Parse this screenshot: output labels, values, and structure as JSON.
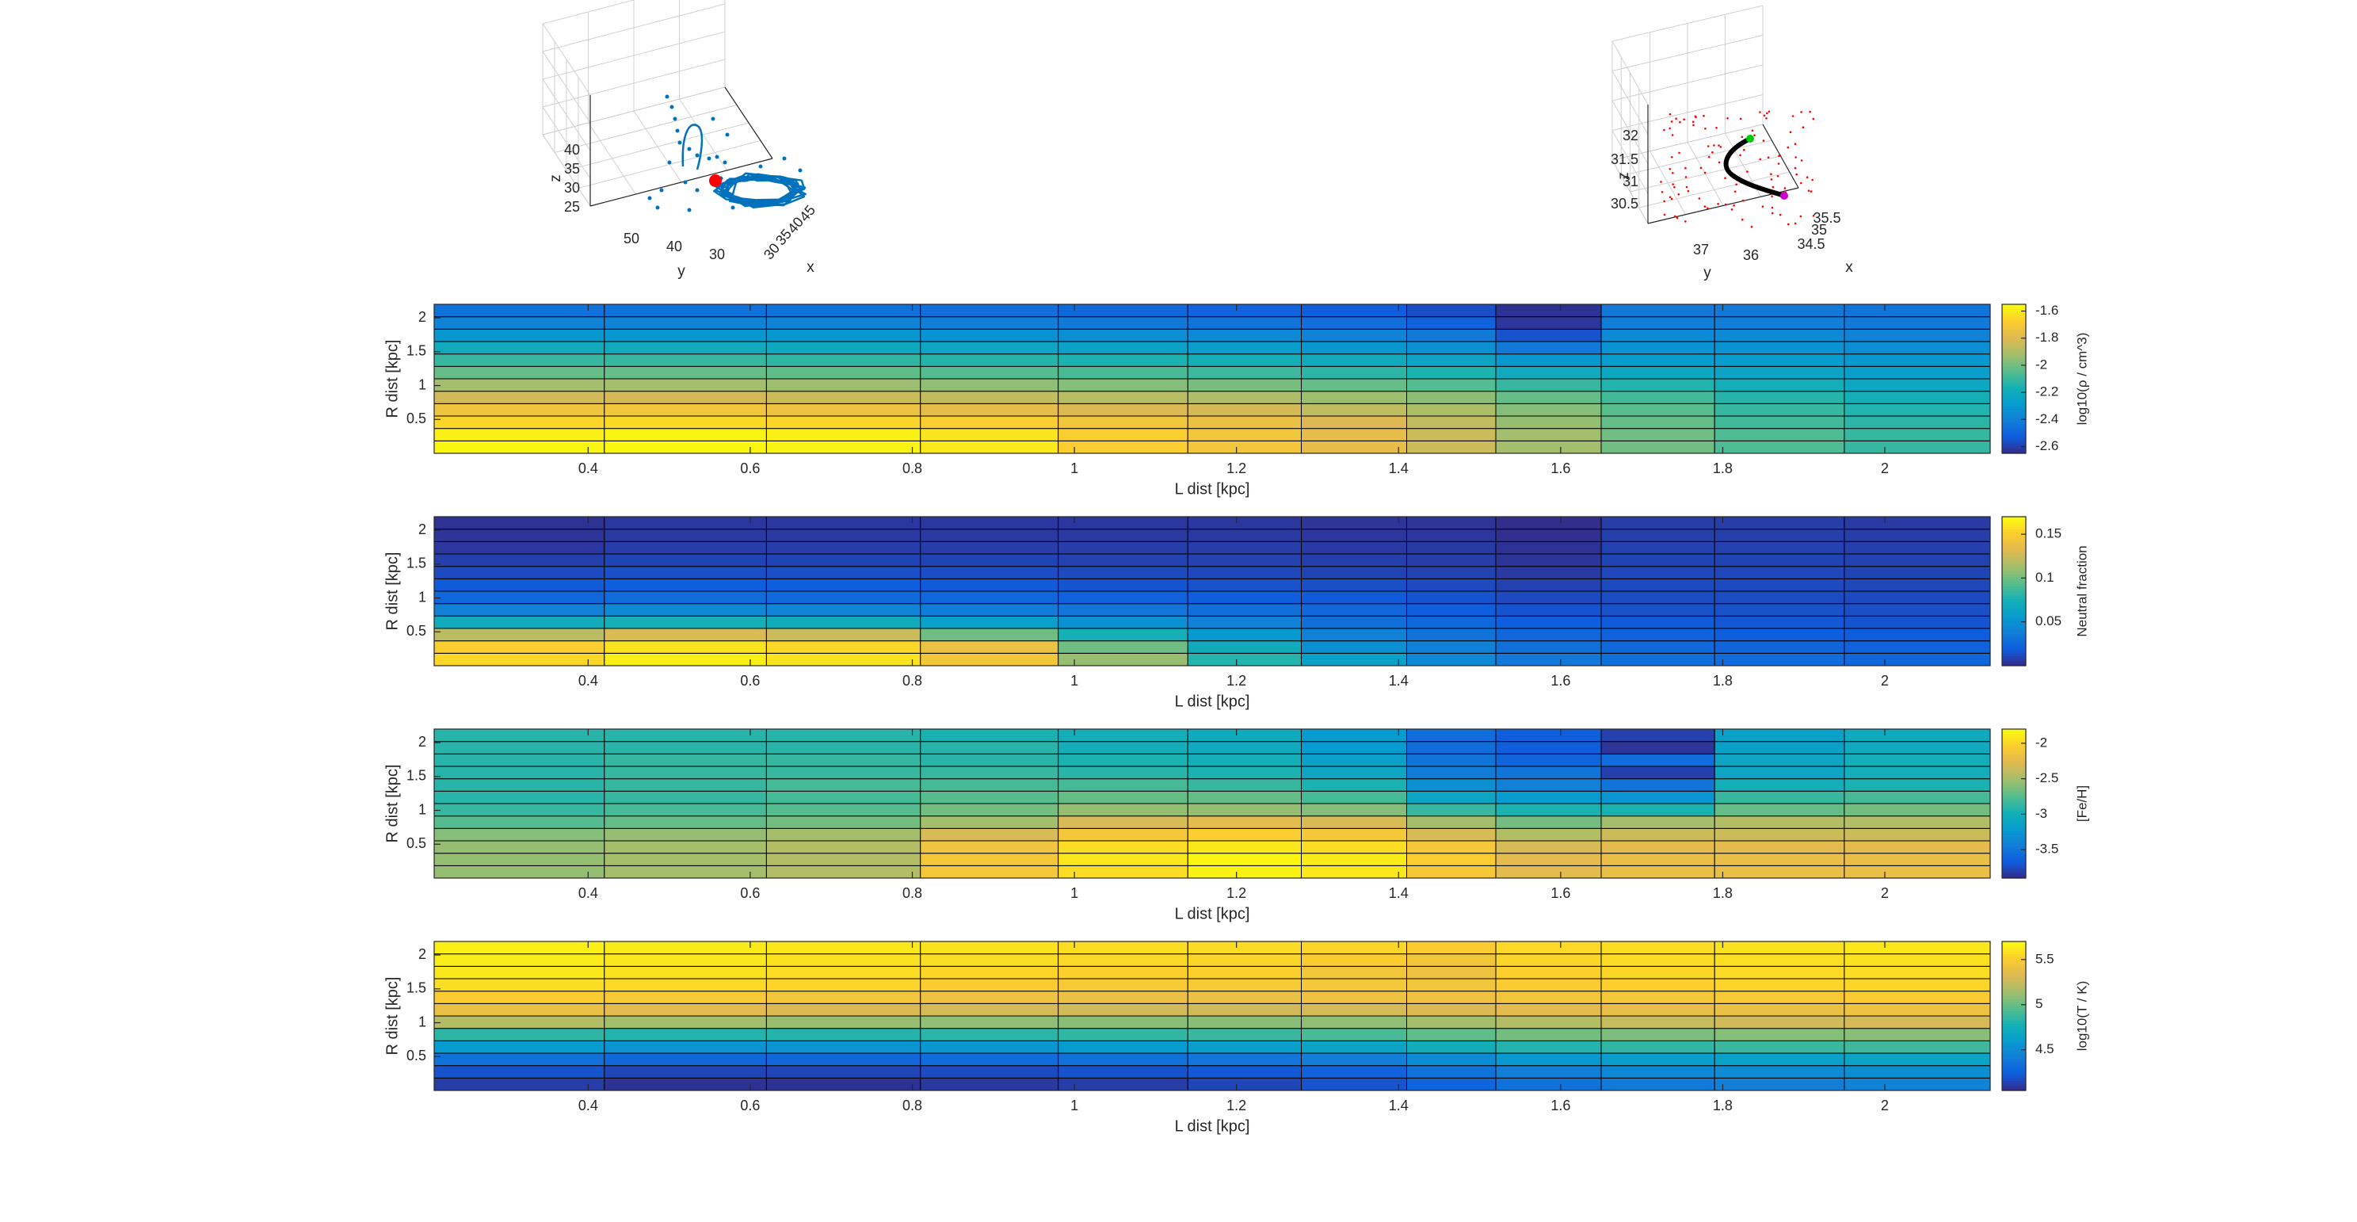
{
  "figure": {
    "background": "#ffffff"
  },
  "chart_data": [
    {
      "type": "scatter3d",
      "id": "left3d",
      "xlabel": "x",
      "ylabel": "y",
      "zlabel": "z",
      "x_ticks": [
        "30",
        "35",
        "40",
        "45"
      ],
      "y_ticks": [
        "50",
        "40",
        "30"
      ],
      "z_ticks": [
        "25",
        "30",
        "35",
        "40"
      ],
      "marker_color": "#0072BD",
      "highlight_color": "#ff0000"
    },
    {
      "type": "scatter3d",
      "id": "right3d",
      "xlabel": "x",
      "ylabel": "y",
      "zlabel": "z",
      "x_ticks": [
        "34.5",
        "35",
        "35.5"
      ],
      "y_ticks": [
        "37",
        "36"
      ],
      "z_ticks": [
        "30.5",
        "31",
        "31.5",
        "32"
      ],
      "line_color": "#000000",
      "start_color": "#00cc00",
      "end_color": "#cc00cc",
      "cloud_color": "#ff0000"
    },
    {
      "type": "heatmap",
      "id": "density",
      "xlabel": "L dist [kpc]",
      "ylabel": "R dist [kpc]",
      "x_ticks": [
        "0.4",
        "0.6",
        "0.8",
        "1",
        "1.2",
        "1.4",
        "1.6",
        "1.8",
        "2"
      ],
      "y_ticks": [
        "0.5",
        "1",
        "1.5",
        "2"
      ],
      "colorbar_label": "log10(ρ / cm^3)",
      "colorbar_ticks": [
        "-1.6",
        "-1.8",
        "-2",
        "-2.2",
        "-2.4",
        "-2.6"
      ],
      "clim": [
        -2.65,
        -1.55
      ],
      "colormap": "parula",
      "values_note": "rows listed bottom (R≈0.1) to top (R≈2.1), columns left to right",
      "values": [
        [
          -1.56,
          -1.56,
          -1.57,
          -1.6,
          -1.68,
          -1.72,
          -1.77,
          -1.84,
          -1.92,
          -2.0,
          -2.06,
          -2.1
        ],
        [
          -1.58,
          -1.57,
          -1.58,
          -1.61,
          -1.68,
          -1.72,
          -1.77,
          -1.84,
          -1.92,
          -2.0,
          -2.06,
          -2.1
        ],
        [
          -1.65,
          -1.64,
          -1.65,
          -1.68,
          -1.72,
          -1.75,
          -1.8,
          -1.86,
          -1.94,
          -2.02,
          -2.08,
          -2.12
        ],
        [
          -1.73,
          -1.72,
          -1.74,
          -1.77,
          -1.8,
          -1.82,
          -1.86,
          -1.9,
          -1.97,
          -2.04,
          -2.1,
          -2.14
        ],
        [
          -1.83,
          -1.82,
          -1.84,
          -1.86,
          -1.88,
          -1.9,
          -1.93,
          -1.96,
          -2.02,
          -2.08,
          -2.13,
          -2.17
        ],
        [
          -1.92,
          -1.92,
          -1.93,
          -1.95,
          -1.97,
          -1.99,
          -2.02,
          -2.05,
          -2.1,
          -2.14,
          -2.18,
          -2.22
        ],
        [
          -2.02,
          -2.02,
          -2.03,
          -2.05,
          -2.07,
          -2.09,
          -2.12,
          -2.15,
          -2.2,
          -2.22,
          -2.24,
          -2.27
        ],
        [
          -2.1,
          -2.1,
          -2.11,
          -2.13,
          -2.15,
          -2.17,
          -2.2,
          -2.24,
          -2.3,
          -2.28,
          -2.28,
          -2.3
        ],
        [
          -2.2,
          -2.2,
          -2.21,
          -2.23,
          -2.25,
          -2.27,
          -2.3,
          -2.33,
          -2.42,
          -2.32,
          -2.32,
          -2.34
        ],
        [
          -2.3,
          -2.3,
          -2.3,
          -2.32,
          -2.34,
          -2.36,
          -2.38,
          -2.42,
          -2.55,
          -2.36,
          -2.36,
          -2.38
        ],
        [
          -2.38,
          -2.38,
          -2.38,
          -2.4,
          -2.42,
          -2.44,
          -2.46,
          -2.5,
          -2.62,
          -2.4,
          -2.4,
          -2.42
        ],
        [
          -2.45,
          -2.45,
          -2.45,
          -2.46,
          -2.48,
          -2.5,
          -2.52,
          -2.56,
          -2.63,
          -2.42,
          -2.42,
          -2.44
        ]
      ]
    },
    {
      "type": "heatmap",
      "id": "neutral",
      "xlabel": "L dist [kpc]",
      "ylabel": "R dist [kpc]",
      "x_ticks": [
        "0.4",
        "0.6",
        "0.8",
        "1",
        "1.2",
        "1.4",
        "1.6",
        "1.8",
        "2"
      ],
      "y_ticks": [
        "0.5",
        "1",
        "1.5",
        "2"
      ],
      "colorbar_label": "Neutral fraction",
      "colorbar_ticks": [
        "0.15",
        "0.1",
        "0.05"
      ],
      "clim": [
        0.0,
        0.17
      ],
      "colormap": "parula",
      "values_note": "rows listed bottom to top, columns left to right",
      "values": [
        [
          0.155,
          0.165,
          0.16,
          0.145,
          0.11,
          0.08,
          0.06,
          0.045,
          0.035,
          0.03,
          0.028,
          0.025
        ],
        [
          0.15,
          0.16,
          0.155,
          0.14,
          0.1,
          0.07,
          0.05,
          0.04,
          0.03,
          0.026,
          0.024,
          0.022
        ],
        [
          0.12,
          0.13,
          0.125,
          0.1,
          0.075,
          0.055,
          0.04,
          0.032,
          0.025,
          0.022,
          0.02,
          0.019
        ],
        [
          0.07,
          0.075,
          0.07,
          0.06,
          0.05,
          0.04,
          0.03,
          0.025,
          0.02,
          0.018,
          0.017,
          0.016
        ],
        [
          0.04,
          0.045,
          0.042,
          0.038,
          0.033,
          0.03,
          0.025,
          0.02,
          0.016,
          0.015,
          0.015,
          0.014
        ],
        [
          0.025,
          0.028,
          0.027,
          0.025,
          0.022,
          0.02,
          0.018,
          0.016,
          0.012,
          0.013,
          0.013,
          0.012
        ],
        [
          0.018,
          0.02,
          0.02,
          0.018,
          0.016,
          0.015,
          0.014,
          0.012,
          0.009,
          0.012,
          0.012,
          0.011
        ],
        [
          0.012,
          0.014,
          0.014,
          0.013,
          0.012,
          0.011,
          0.01,
          0.009,
          0.006,
          0.011,
          0.011,
          0.01
        ],
        [
          0.008,
          0.01,
          0.01,
          0.01,
          0.009,
          0.009,
          0.008,
          0.007,
          0.004,
          0.01,
          0.01,
          0.009
        ],
        [
          0.005,
          0.007,
          0.007,
          0.007,
          0.007,
          0.007,
          0.006,
          0.006,
          0.003,
          0.009,
          0.009,
          0.008
        ],
        [
          0.004,
          0.006,
          0.006,
          0.006,
          0.006,
          0.006,
          0.005,
          0.005,
          0.002,
          0.008,
          0.008,
          0.007
        ],
        [
          0.003,
          0.005,
          0.005,
          0.005,
          0.005,
          0.005,
          0.004,
          0.004,
          0.001,
          0.007,
          0.007,
          0.006
        ]
      ]
    },
    {
      "type": "heatmap",
      "id": "metallicity",
      "xlabel": "L dist [kpc]",
      "ylabel": "R dist [kpc]",
      "x_ticks": [
        "0.4",
        "0.6",
        "0.8",
        "1",
        "1.2",
        "1.4",
        "1.6",
        "1.8",
        "2"
      ],
      "y_ticks": [
        "0.5",
        "1",
        "1.5",
        "2"
      ],
      "colorbar_label": "[Fe/H]",
      "colorbar_ticks": [
        "-2",
        "-2.5",
        "-3",
        "-3.5"
      ],
      "clim": [
        -3.9,
        -1.8
      ],
      "colormap": "parula",
      "values_note": "rows listed bottom to top, columns left to right",
      "values": [
        [
          -2.55,
          -2.5,
          -2.45,
          -2.1,
          -1.95,
          -1.85,
          -1.9,
          -2.1,
          -2.25,
          -2.2,
          -2.2,
          -2.2
        ],
        [
          -2.55,
          -2.5,
          -2.45,
          -2.1,
          -1.9,
          -1.82,
          -1.88,
          -2.05,
          -2.25,
          -2.2,
          -2.2,
          -2.2
        ],
        [
          -2.55,
          -2.5,
          -2.45,
          -2.15,
          -1.95,
          -1.9,
          -1.95,
          -2.1,
          -2.3,
          -2.25,
          -2.25,
          -2.25
        ],
        [
          -2.6,
          -2.55,
          -2.5,
          -2.3,
          -2.1,
          -2.05,
          -2.1,
          -2.3,
          -2.45,
          -2.35,
          -2.35,
          -2.35
        ],
        [
          -2.75,
          -2.7,
          -2.65,
          -2.5,
          -2.3,
          -2.25,
          -2.3,
          -2.5,
          -2.65,
          -2.5,
          -2.45,
          -2.45
        ],
        [
          -2.85,
          -2.8,
          -2.75,
          -2.65,
          -2.55,
          -2.55,
          -2.6,
          -2.85,
          -2.95,
          -2.95,
          -2.7,
          -2.65
        ],
        [
          -2.9,
          -2.85,
          -2.8,
          -2.75,
          -2.7,
          -2.7,
          -2.8,
          -3.1,
          -3.2,
          -3.25,
          -2.85,
          -2.8
        ],
        [
          -2.9,
          -2.85,
          -2.8,
          -2.8,
          -2.8,
          -2.85,
          -2.95,
          -3.3,
          -3.4,
          -3.5,
          -3.0,
          -2.95
        ],
        [
          -2.9,
          -2.85,
          -2.85,
          -2.85,
          -2.9,
          -2.95,
          -3.1,
          -3.45,
          -3.5,
          -3.8,
          -3.1,
          -3.0
        ],
        [
          -2.9,
          -2.85,
          -2.85,
          -2.9,
          -2.95,
          -3.0,
          -3.15,
          -3.5,
          -3.6,
          -3.55,
          -3.1,
          -3.0
        ],
        [
          -2.9,
          -2.9,
          -2.9,
          -2.9,
          -3.0,
          -3.05,
          -3.2,
          -3.55,
          -3.65,
          -3.85,
          -3.15,
          -3.05
        ],
        [
          -2.9,
          -2.9,
          -2.9,
          -2.95,
          -3.0,
          -3.05,
          -3.2,
          -3.55,
          -3.65,
          -3.8,
          -3.15,
          -3.05
        ]
      ]
    },
    {
      "type": "heatmap",
      "id": "temperature",
      "xlabel": "L dist [kpc]",
      "ylabel": "R dist [kpc]",
      "x_ticks": [
        "0.4",
        "0.6",
        "0.8",
        "1",
        "1.2",
        "1.4",
        "1.6",
        "1.8",
        "2"
      ],
      "y_ticks": [
        "0.5",
        "1",
        "1.5",
        "2"
      ],
      "colorbar_label": "log10(T / K)",
      "colorbar_ticks": [
        "5.5",
        "5",
        "4.5"
      ],
      "clim": [
        4.05,
        5.7
      ],
      "colormap": "parula",
      "values_note": "rows listed bottom to top, columns left to right",
      "values": [
        [
          4.12,
          4.08,
          4.08,
          4.1,
          4.12,
          4.15,
          4.2,
          4.28,
          4.35,
          4.4,
          4.42,
          4.45
        ],
        [
          4.2,
          4.15,
          4.15,
          4.17,
          4.2,
          4.22,
          4.27,
          4.35,
          4.42,
          4.48,
          4.5,
          4.52
        ],
        [
          4.35,
          4.3,
          4.3,
          4.32,
          4.35,
          4.37,
          4.42,
          4.5,
          4.58,
          4.62,
          4.64,
          4.66
        ],
        [
          4.6,
          4.55,
          4.55,
          4.57,
          4.6,
          4.62,
          4.67,
          4.75,
          4.82,
          4.86,
          4.88,
          4.9
        ],
        [
          4.85,
          4.82,
          4.82,
          4.84,
          4.86,
          4.88,
          4.92,
          4.98,
          5.03,
          5.05,
          5.07,
          5.08
        ],
        [
          5.2,
          5.15,
          5.12,
          5.1,
          5.08,
          5.08,
          5.1,
          5.15,
          5.2,
          5.25,
          5.28,
          5.3
        ],
        [
          5.4,
          5.35,
          5.32,
          5.3,
          5.28,
          5.28,
          5.3,
          5.32,
          5.35,
          5.38,
          5.4,
          5.42
        ],
        [
          5.5,
          5.48,
          5.45,
          5.42,
          5.4,
          5.4,
          5.42,
          5.42,
          5.45,
          5.46,
          5.48,
          5.5
        ],
        [
          5.58,
          5.56,
          5.54,
          5.5,
          5.48,
          5.48,
          5.46,
          5.45,
          5.5,
          5.52,
          5.54,
          5.55
        ],
        [
          5.62,
          5.6,
          5.58,
          5.55,
          5.52,
          5.52,
          5.45,
          5.42,
          5.52,
          5.55,
          5.57,
          5.58
        ],
        [
          5.64,
          5.62,
          5.6,
          5.58,
          5.56,
          5.55,
          5.5,
          5.45,
          5.55,
          5.57,
          5.59,
          5.6
        ],
        [
          5.65,
          5.63,
          5.62,
          5.6,
          5.58,
          5.57,
          5.55,
          5.5,
          5.56,
          5.58,
          5.6,
          5.62
        ]
      ]
    }
  ]
}
